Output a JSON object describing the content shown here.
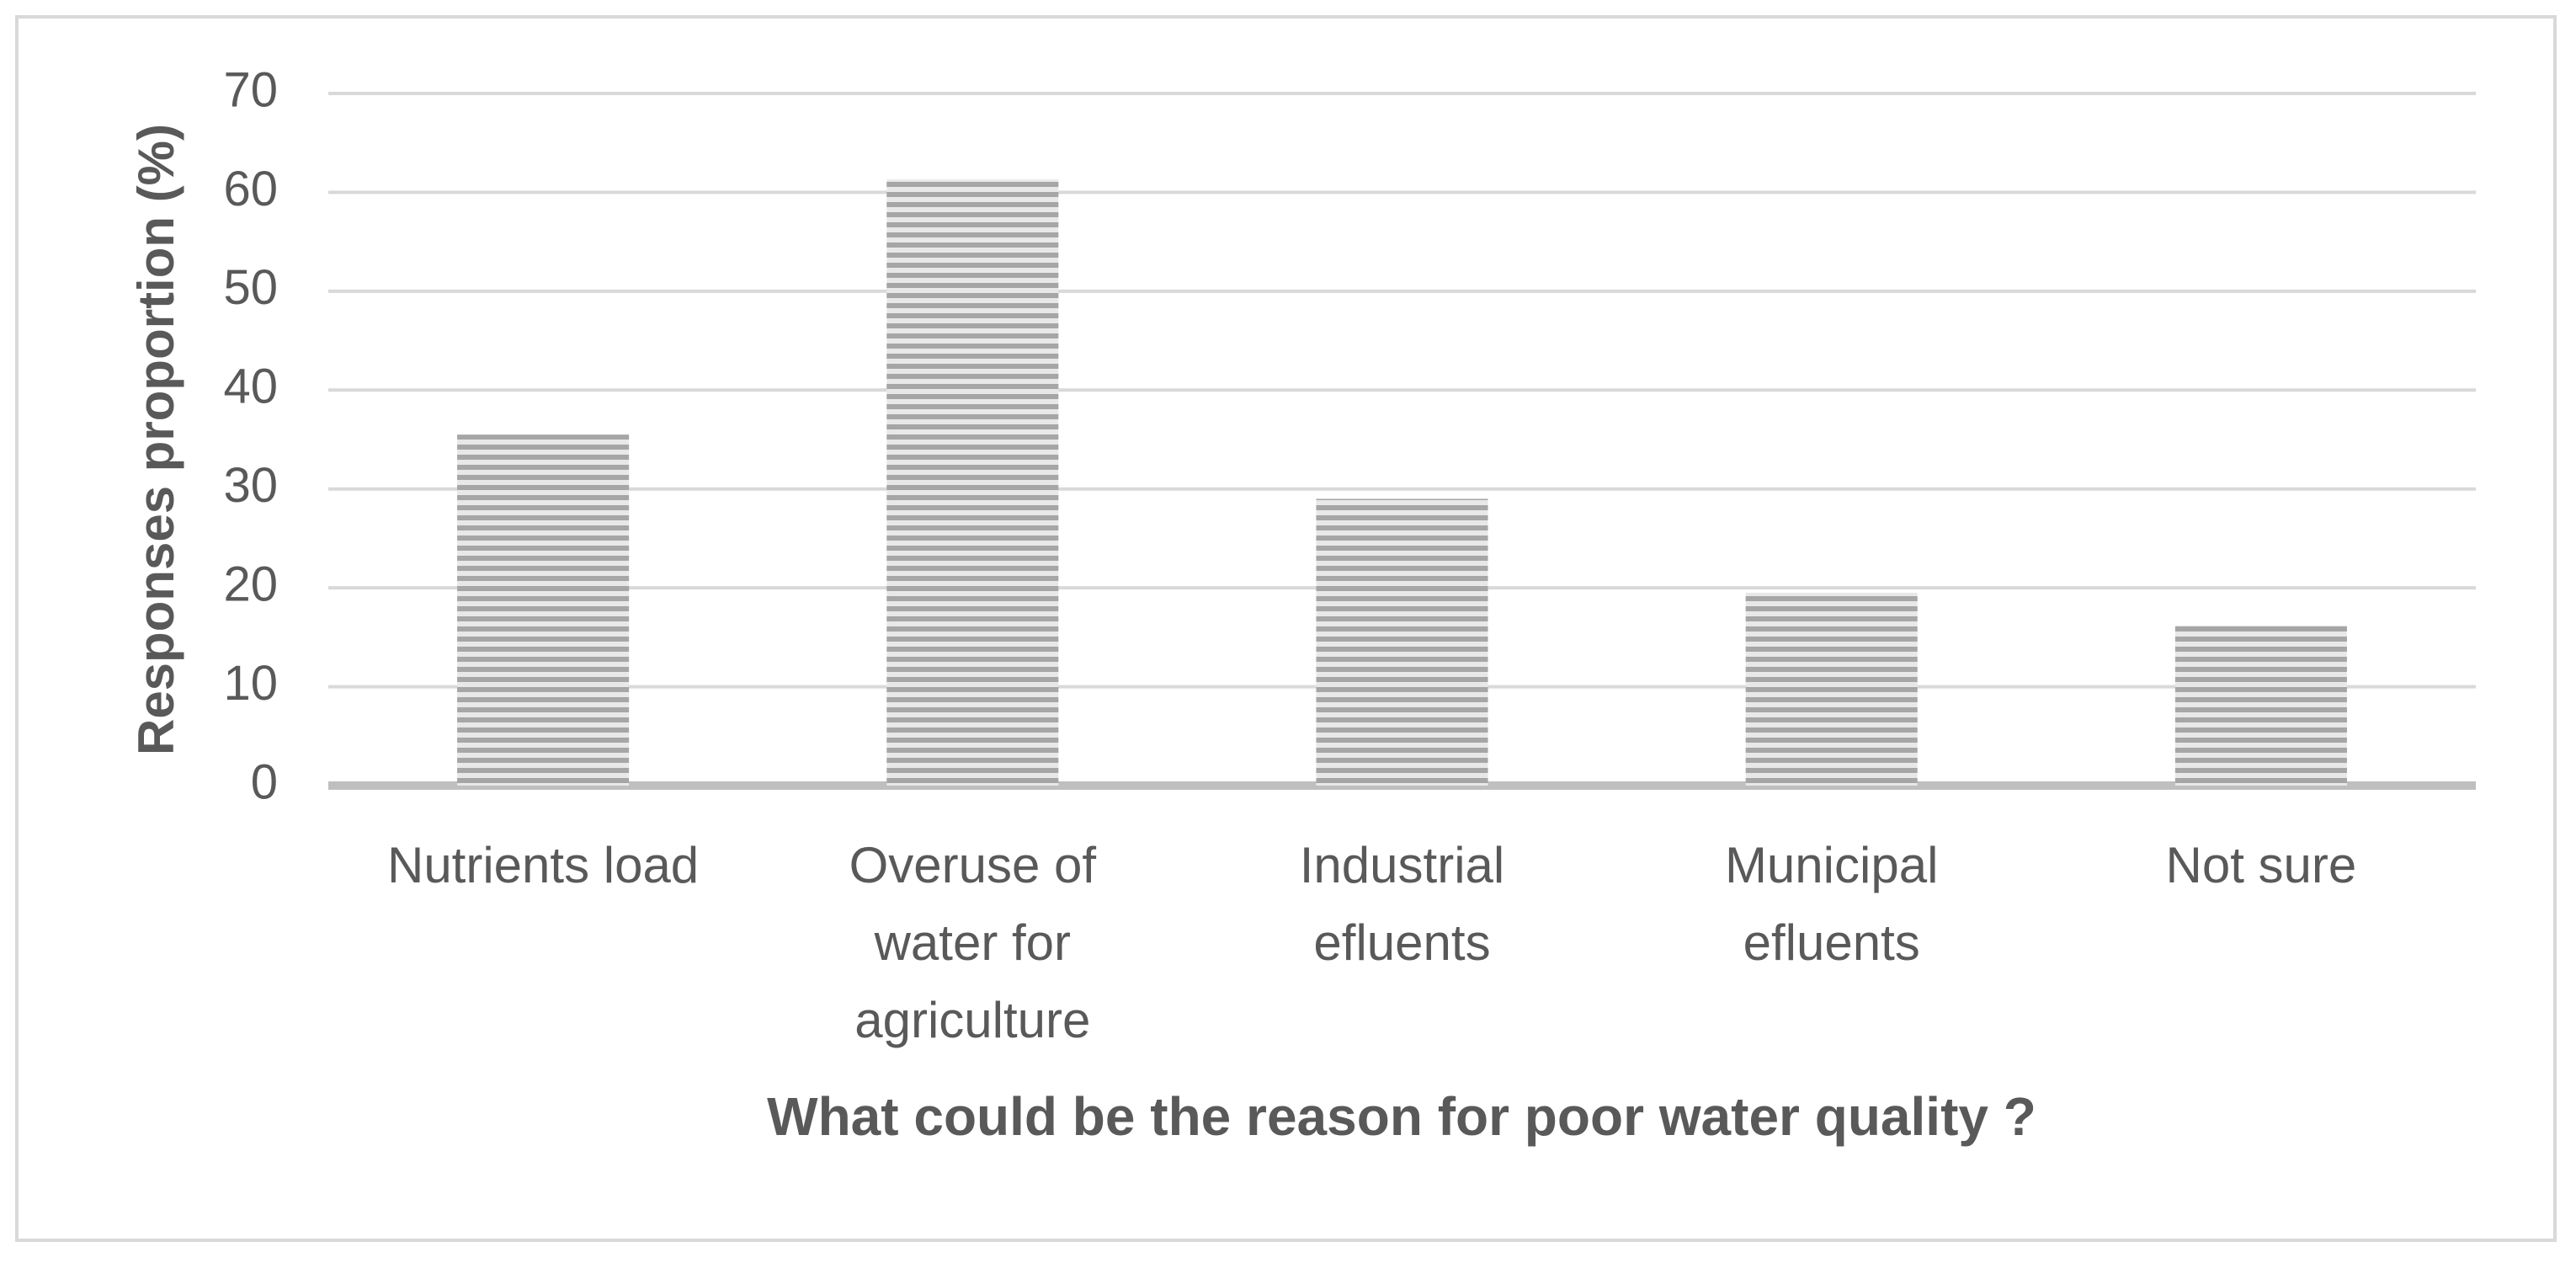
{
  "chart_data": {
    "type": "bar",
    "categories": [
      "Nutrients load",
      "Overuse of water for agriculture",
      "Industrial efluents",
      "Municipal efluents",
      "Not sure"
    ],
    "values": [
      35.5,
      61.3,
      29,
      19.5,
      16.2
    ],
    "color": "#a6a6a6",
    "x_label": "What could be the reason for poor water quality ?",
    "y_label": "Responses proportion (%)",
    "ylim": [
      0,
      70
    ],
    "yticks": [
      0,
      10,
      20,
      30,
      40,
      50,
      60,
      70
    ],
    "grid": true
  }
}
